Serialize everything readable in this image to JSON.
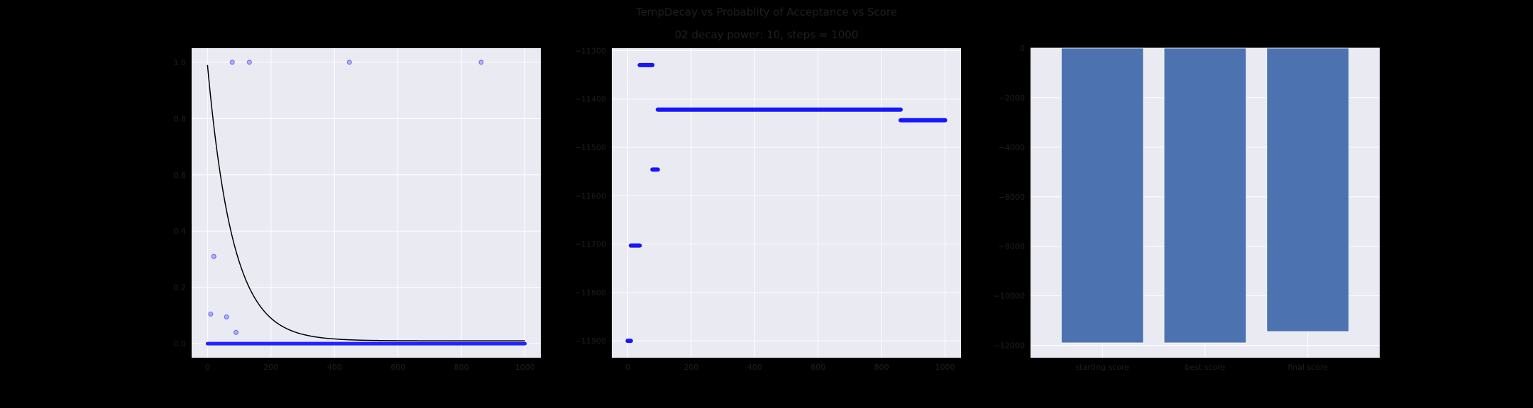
{
  "figure": {
    "title_line1": "TempDecay vs Probablity of Acceptance vs Score",
    "title_line2": "02 decay power: 10, steps = 1000",
    "colors": {
      "background": "#000000",
      "axes_face": "#eaeaf2",
      "grid": "#ffffff",
      "tick_text": "#1f1f1f",
      "points": "#0000ff",
      "curve": "#000000",
      "bars": "#4c72b0"
    }
  },
  "chart_data": [
    {
      "type": "scatter",
      "name": "acceptance",
      "xlim": [
        -50,
        1050
      ],
      "ylim": [
        -0.05,
        1.05
      ],
      "x_ticks": [
        0,
        200,
        400,
        600,
        800,
        1000
      ],
      "y_ticks": [
        0.0,
        0.2,
        0.4,
        0.6,
        0.8,
        1.0
      ],
      "y_tick_labels": [
        "0.0",
        "0.2",
        "0.4",
        "0.6",
        "0.8",
        "1.0"
      ],
      "points_sparse": [
        {
          "x": 10,
          "y": 0.105
        },
        {
          "x": 20,
          "y": 0.31
        },
        {
          "x": 60,
          "y": 0.095
        },
        {
          "x": 90,
          "y": 0.04
        },
        {
          "x": 78,
          "y": 1.0
        },
        {
          "x": 132,
          "y": 1.0
        },
        {
          "x": 447,
          "y": 1.0
        },
        {
          "x": 862,
          "y": 1.0
        }
      ],
      "zero_band": {
        "x_start": 0,
        "x_end": 1000,
        "y": 0.0
      },
      "curve": {
        "type": "exponential",
        "y0": 0.99,
        "decay_rate": 0.0125,
        "floor": 0.01,
        "x_start": 0,
        "x_end": 1000
      },
      "grid": true
    },
    {
      "type": "scatter",
      "name": "score",
      "xlim": [
        -50,
        1050
      ],
      "ylim": [
        -11935,
        -11295
      ],
      "x_ticks": [
        0,
        200,
        400,
        600,
        800,
        1000
      ],
      "y_ticks": [
        -11300,
        -11400,
        -11500,
        -11600,
        -11700,
        -11800,
        -11900
      ],
      "y_tick_labels": [
        "−11300",
        "−11400",
        "−11500",
        "−11600",
        "−11700",
        "−11800",
        "−11900"
      ],
      "segments": [
        {
          "x_start": 0,
          "x_end": 10,
          "y": -11900
        },
        {
          "x_start": 10,
          "x_end": 38,
          "y": -11703
        },
        {
          "x_start": 38,
          "x_end": 78,
          "y": -11330
        },
        {
          "x_start": 78,
          "x_end": 95,
          "y": -11546
        },
        {
          "x_start": 95,
          "x_end": 860,
          "y": -11422
        },
        {
          "x_start": 860,
          "x_end": 1000,
          "y": -11444
        }
      ],
      "grid": true
    },
    {
      "type": "bar",
      "name": "scores",
      "categories": [
        "starting score",
        "best score",
        "final score"
      ],
      "values": [
        -11900,
        -11900,
        -11444
      ],
      "ylim": [
        -12500,
        0
      ],
      "y_ticks": [
        0,
        -2000,
        -4000,
        -6000,
        -8000,
        -10000,
        -12000
      ],
      "y_tick_labels": [
        "0",
        "−2000",
        "−4000",
        "−6000",
        "−8000",
        "−10000",
        "−12000"
      ],
      "grid": true
    }
  ]
}
